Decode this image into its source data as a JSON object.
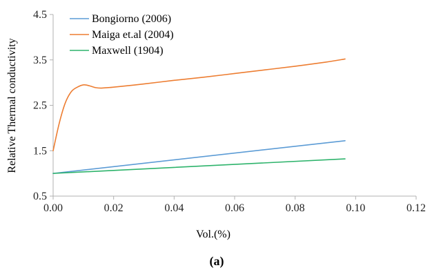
{
  "chart_data": {
    "type": "line",
    "xlabel": "Vol.(%)",
    "ylabel": "Relative Thermal conductivity",
    "caption": "(a)",
    "xlim": [
      0,
      0.12
    ],
    "ylim": [
      0.5,
      4.5
    ],
    "x_ticks": [
      "0.00",
      "0.02",
      "0.04",
      "0.06",
      "0.08",
      "0.10",
      "0.12"
    ],
    "y_ticks": [
      "0.5",
      "1.5",
      "2.5",
      "3.5",
      "4.5"
    ],
    "grid": false,
    "legend_position": "top-left",
    "series": [
      {
        "name": "Bongiorno (2006)",
        "color": "#5b9bd5",
        "x": [
          0,
          0.0965
        ],
        "y": [
          1.0,
          1.72
        ]
      },
      {
        "name": "Maiga et.al (2004)",
        "color": "#ed7d31",
        "x": [
          0,
          0.002,
          0.004,
          0.006,
          0.008,
          0.01,
          0.012,
          0.014,
          0.016,
          0.02,
          0.03,
          0.04,
          0.05,
          0.06,
          0.07,
          0.08,
          0.09,
          0.0965
        ],
        "y": [
          1.5,
          2.1,
          2.55,
          2.8,
          2.9,
          2.95,
          2.93,
          2.89,
          2.88,
          2.9,
          2.97,
          3.05,
          3.12,
          3.2,
          3.28,
          3.36,
          3.45,
          3.52
        ]
      },
      {
        "name": "Maxwell (1904)",
        "color": "#2db36b",
        "x": [
          0,
          0.0965
        ],
        "y": [
          1.0,
          1.32
        ]
      }
    ]
  }
}
